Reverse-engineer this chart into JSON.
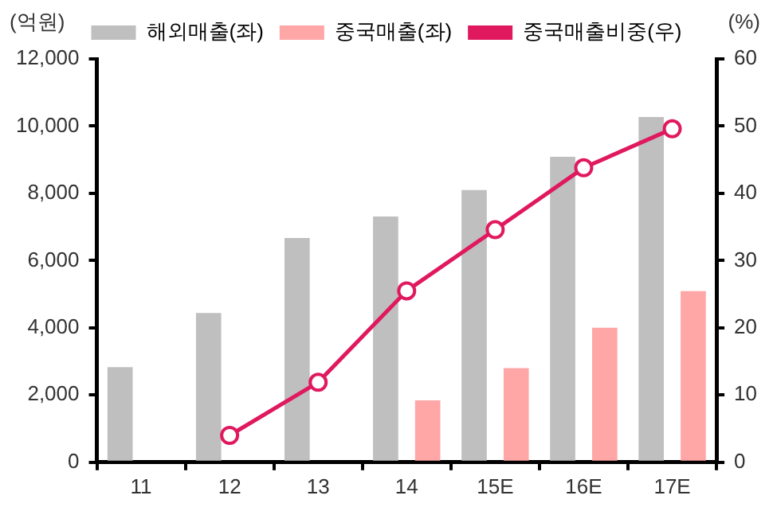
{
  "chart_data": {
    "type": "bar",
    "ylabel": "(억원)",
    "y2label": "(%)",
    "categories": [
      "11",
      "12",
      "13",
      "14",
      "15E",
      "16E",
      "17E"
    ],
    "series": [
      {
        "name": "해외매출(좌)",
        "color": "#bfbfbf",
        "values": [
          2830,
          4440,
          6670,
          7310,
          8100,
          9090,
          10270
        ]
      },
      {
        "name": "중국매출(좌)",
        "color": "#ffa6a6",
        "values": [
          null,
          null,
          null,
          1840,
          2800,
          4000,
          5090
        ]
      },
      {
        "name": "중국매출비중(우)",
        "type": "line",
        "axis": "y2",
        "color": "#e0195f",
        "marker": "circle",
        "values": [
          null,
          4.0,
          11.9,
          25.5,
          34.6,
          43.8,
          49.6
        ]
      }
    ],
    "ylim": [
      0,
      12000
    ],
    "yticks": [
      {
        "value": 0,
        "label": "0"
      },
      {
        "value": 2000,
        "label": "2,000"
      },
      {
        "value": 4000,
        "label": "4,000"
      },
      {
        "value": 6000,
        "label": "6,000"
      },
      {
        "value": 8000,
        "label": "8,000"
      },
      {
        "value": 10000,
        "label": "10,000"
      },
      {
        "value": 12000,
        "label": "12,000"
      }
    ],
    "y2lim": [
      0,
      60
    ],
    "y2ticks": [
      0,
      10,
      20,
      30,
      40,
      50,
      60
    ],
    "grid": false,
    "legend": "top"
  }
}
